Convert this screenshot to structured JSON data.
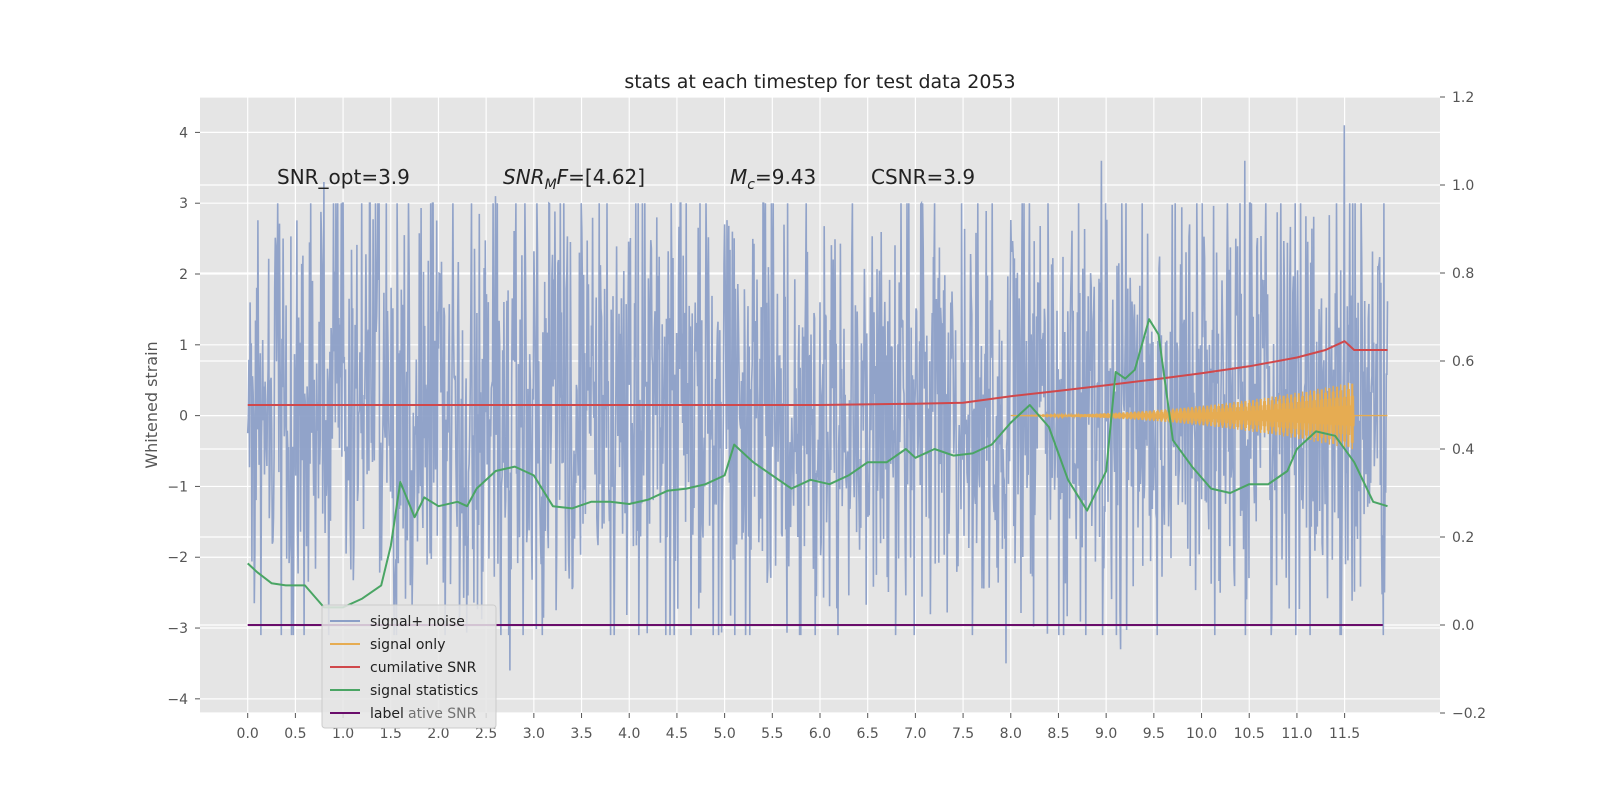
{
  "chart_data": {
    "type": "line",
    "title": "stats at each timestep for test data 2053",
    "ylabel": "Whitened strain",
    "xlim": [
      -0.5,
      12.5
    ],
    "ylim": [
      -4.2,
      4.5
    ],
    "y2lim": [
      -0.2,
      1.2
    ],
    "grid": true,
    "legend_position": "lower-left",
    "x_ticks": [
      "0.0",
      "0.5",
      "1.0",
      "1.5",
      "2.0",
      "2.5",
      "3.0",
      "3.5",
      "4.0",
      "4.5",
      "5.0",
      "5.5",
      "6.0",
      "6.5",
      "7.0",
      "7.5",
      "8.0",
      "8.5",
      "9.0",
      "9.5",
      "10.0",
      "10.5",
      "11.0",
      "11.5"
    ],
    "y_ticks": [
      "4",
      "3",
      "2",
      "1",
      "0",
      "−1",
      "−2",
      "−3",
      "−4"
    ],
    "y2_ticks": [
      "1.2",
      "1.0",
      "0.8",
      "0.6",
      "0.4",
      "0.2",
      "0.0",
      "−0.2"
    ],
    "annotations": [
      {
        "name": "snr-opt",
        "text": "SNR_opt=3.9"
      },
      {
        "name": "snr-mf",
        "base": "SNR",
        "sub": "M",
        "rest": "F=[4.62]"
      },
      {
        "name": "chirp-mass",
        "base": "M",
        "sub": "c",
        "rest": "=9.43"
      },
      {
        "name": "csnr",
        "text": "CSNR=3.9"
      }
    ],
    "series": [
      {
        "name": "signal+ noise",
        "color": "#8c9fc7",
        "kind": "noise",
        "x_range": [
          0.0,
          11.95
        ],
        "typical_band": [
          -1.6,
          1.9
        ],
        "extremes": [
          {
            "x": 0.8,
            "y": 3.3
          },
          {
            "x": 2.6,
            "y": 3.1
          },
          {
            "x": 6.0,
            "y": 1.6
          },
          {
            "x": 8.95,
            "y": 3.6
          },
          {
            "x": 10.45,
            "y": 3.6
          },
          {
            "x": 11.5,
            "y": 4.1
          },
          {
            "x": 2.75,
            "y": -3.6
          },
          {
            "x": 7.95,
            "y": -3.5
          },
          {
            "x": 9.15,
            "y": -3.3
          },
          {
            "x": 5.8,
            "y": -3.1
          }
        ]
      },
      {
        "name": "signal only",
        "color": "#e6ac52",
        "kind": "chirp",
        "x_range": [
          8.0,
          11.6
        ],
        "max_amplitude": 0.45
      },
      {
        "name": "cumilative SNR",
        "color": "#d0484b",
        "axis": "right",
        "x": [
          0.0,
          6.0,
          7.0,
          7.5,
          8.0,
          8.5,
          9.0,
          9.5,
          10.0,
          10.5,
          11.0,
          11.3,
          11.5,
          11.6,
          11.95
        ],
        "y": [
          0.5,
          0.5,
          0.503,
          0.505,
          0.52,
          0.532,
          0.545,
          0.558,
          0.572,
          0.588,
          0.608,
          0.625,
          0.645,
          0.625,
          0.625
        ]
      },
      {
        "name": "signal statistics",
        "color": "#4aa564",
        "axis": "right",
        "x": [
          0.0,
          0.1,
          0.25,
          0.4,
          0.6,
          0.8,
          1.0,
          1.2,
          1.4,
          1.5,
          1.6,
          1.75,
          1.85,
          2.0,
          2.2,
          2.3,
          2.4,
          2.6,
          2.8,
          3.0,
          3.2,
          3.4,
          3.6,
          3.8,
          4.0,
          4.2,
          4.4,
          4.6,
          4.8,
          5.0,
          5.1,
          5.3,
          5.5,
          5.7,
          5.9,
          6.1,
          6.3,
          6.5,
          6.7,
          6.9,
          7.0,
          7.2,
          7.4,
          7.6,
          7.8,
          8.0,
          8.2,
          8.4,
          8.6,
          8.8,
          9.0,
          9.1,
          9.2,
          9.3,
          9.45,
          9.55,
          9.7,
          9.9,
          10.1,
          10.3,
          10.5,
          10.7,
          10.9,
          11.0,
          11.2,
          11.4,
          11.6,
          11.8,
          11.95
        ],
        "y": [
          0.14,
          0.12,
          0.095,
          0.09,
          0.09,
          0.04,
          0.04,
          0.06,
          0.09,
          0.18,
          0.325,
          0.245,
          0.29,
          0.27,
          0.28,
          0.27,
          0.31,
          0.35,
          0.36,
          0.34,
          0.27,
          0.265,
          0.28,
          0.28,
          0.275,
          0.285,
          0.305,
          0.31,
          0.32,
          0.34,
          0.41,
          0.37,
          0.34,
          0.31,
          0.33,
          0.32,
          0.34,
          0.37,
          0.37,
          0.4,
          0.38,
          0.4,
          0.385,
          0.39,
          0.41,
          0.46,
          0.5,
          0.45,
          0.33,
          0.26,
          0.35,
          0.575,
          0.56,
          0.58,
          0.695,
          0.66,
          0.42,
          0.36,
          0.31,
          0.3,
          0.32,
          0.32,
          0.35,
          0.4,
          0.44,
          0.43,
          0.37,
          0.28,
          0.27
        ]
      },
      {
        "name": "label",
        "color": "#6a0d6b",
        "axis": "right",
        "x": [
          0.0,
          11.9
        ],
        "y": [
          0.0,
          0.0
        ]
      }
    ],
    "legend": [
      {
        "name": "signal+ noise",
        "color": "#8c9fc7"
      },
      {
        "name": "signal only",
        "color": "#e6ac52"
      },
      {
        "name": "cumilative SNR",
        "color": "#d0484b"
      },
      {
        "name": "signal statistics",
        "color": "#4aa564"
      },
      {
        "name": "label",
        "color": "#6a0d6b"
      }
    ],
    "legend_ghost_text": "cumilative SNR"
  }
}
